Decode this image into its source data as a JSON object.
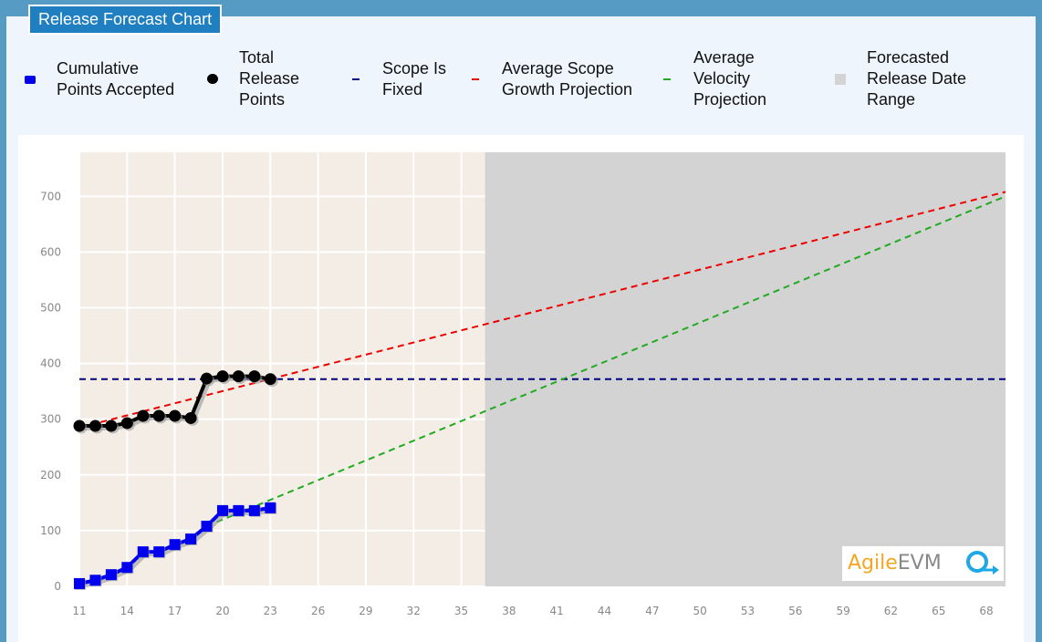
{
  "title": "Release Forecast Chart",
  "legend": [
    {
      "label_lines": [
        "Cumulative",
        "Points Accepted"
      ],
      "icon": "blue-square-marker",
      "color": "#0000ee"
    },
    {
      "label_lines": [
        "Total",
        "Release",
        "Points"
      ],
      "icon": "black-circle-marker",
      "color": "#000000"
    },
    {
      "label_lines": [
        "Scope Is",
        "Fixed"
      ],
      "icon": "navy-dash",
      "color": "#000080"
    },
    {
      "label_lines": [
        "Average Scope",
        "Growth Projection"
      ],
      "icon": "red-dash",
      "color": "#ee0000"
    },
    {
      "label_lines": [
        "Average",
        "Velocity",
        "Projection"
      ],
      "icon": "green-dash",
      "color": "#22aa22"
    },
    {
      "label_lines": [
        "Forecasted",
        "Release Date",
        "Range"
      ],
      "icon": "gray-square",
      "color": "#d3d3d3"
    }
  ],
  "logo": {
    "part1": "Agile",
    "part2": "EVM"
  },
  "chart_data": {
    "type": "line",
    "title": "Release Forecast Chart",
    "xlim": [
      11,
      69.2
    ],
    "ylim": [
      0,
      779
    ],
    "xticks": [
      11,
      14,
      17,
      20,
      23,
      26,
      29,
      32,
      35,
      38,
      41,
      44,
      47,
      50,
      53,
      56,
      59,
      62,
      65,
      68
    ],
    "yticks": [
      0,
      100,
      200,
      300,
      400,
      500,
      600,
      700
    ],
    "grid": true,
    "series": [
      {
        "name": "Cumulative Points Accepted",
        "color": "#0000ee",
        "marker": "square",
        "x": [
          11,
          12,
          13,
          14,
          15,
          16,
          17,
          18,
          19,
          20,
          21,
          22,
          23
        ],
        "y": [
          5,
          11,
          21,
          34,
          62,
          62,
          75,
          85,
          108,
          136,
          136,
          136,
          141
        ]
      },
      {
        "name": "Total Release Points",
        "color": "#000000",
        "marker": "circle",
        "x": [
          11,
          12,
          13,
          14,
          15,
          16,
          17,
          18,
          19,
          20,
          21,
          22,
          23
        ],
        "y": [
          288,
          288,
          288,
          293,
          306,
          306,
          306,
          302,
          373,
          377,
          377,
          377,
          372
        ]
      },
      {
        "name": "Scope Is Fixed",
        "color": "#000080",
        "dashed": true,
        "x": [
          11,
          69.2
        ],
        "y": [
          372,
          372
        ]
      },
      {
        "name": "Average Scope Growth Projection",
        "color": "#ee0000",
        "dashed": true,
        "x": [
          11,
          69.2
        ],
        "y": [
          285,
          708
        ]
      },
      {
        "name": "Average Velocity Projection",
        "color": "#22aa22",
        "dashed": true,
        "x": [
          19,
          69.2
        ],
        "y": [
          108,
          700
        ]
      }
    ],
    "forecast_range": {
      "name": "Forecasted Release Date Range",
      "x": [
        36.5,
        69.2
      ],
      "color": "#d3d3d3"
    },
    "history_bg_color": "#f3ede6"
  }
}
